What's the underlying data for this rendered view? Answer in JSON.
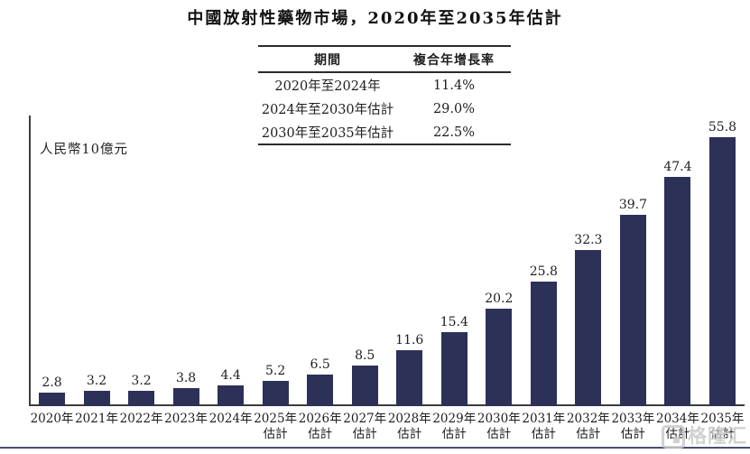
{
  "title": "中國放射性藥物市場，2020年至2035年估計",
  "cagr_table": {
    "headers": [
      "期間",
      "複合年增長率"
    ],
    "rows": [
      [
        "2020年至2024年",
        "11.4%"
      ],
      [
        "2024年至2030年估計",
        "29.0%"
      ],
      [
        "2030年至2035年估計",
        "22.5%"
      ]
    ]
  },
  "chart_data": {
    "type": "bar",
    "title": "中國放射性藥物市場，2020年至2035年估計",
    "xlabel": "",
    "ylabel": "人民幣10億元",
    "categories": [
      "2020年",
      "2021年",
      "2022年",
      "2023年",
      "2024年",
      "2025年估計",
      "2026年估計",
      "2027年估計",
      "2028年估計",
      "2029年估計",
      "2030年估計",
      "2031年估計",
      "2032年估計",
      "2033年估計",
      "2034年估計",
      "2035年估計"
    ],
    "values": [
      2.8,
      3.2,
      3.2,
      3.8,
      4.4,
      5.2,
      6.5,
      8.5,
      11.6,
      15.4,
      20.2,
      25.8,
      32.3,
      39.7,
      47.4,
      55.8
    ],
    "estimate_label": "估計",
    "ylim": [
      0,
      60
    ],
    "grid": false,
    "legend": "none",
    "bar_color": "#2d3157"
  },
  "watermark": {
    "text": "格隆汇",
    "icon": "gelonghui-logo-icon"
  },
  "colors": {
    "bar": "#2d3157",
    "axis": "#3c3c3c",
    "divider": "#47516f",
    "watermark": "#c9c9c9",
    "text": "#1e1e1e"
  }
}
